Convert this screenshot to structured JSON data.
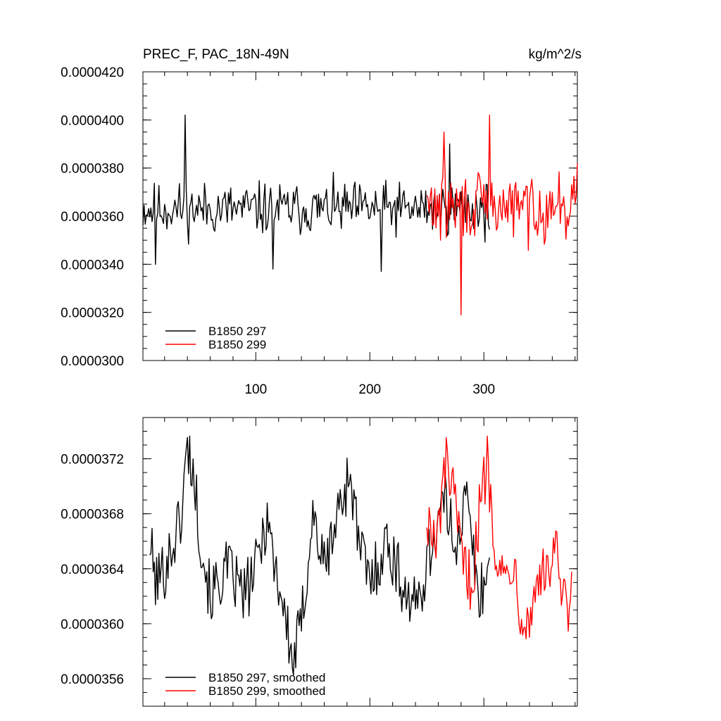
{
  "chart_data": [
    {
      "type": "line",
      "title_left": "PREC_F, PAC_18N-49N",
      "title_right": "kg/m^2/s",
      "xlim": [
        1,
        382
      ],
      "ylim": [
        3e-05,
        4.2e-05
      ],
      "x_ticks": [
        100,
        200,
        300
      ],
      "x_tick_labels": [
        "100",
        "200",
        "300"
      ],
      "y_ticks": [
        3e-05,
        3.2e-05,
        3.4e-05,
        3.6e-05,
        3.8e-05,
        4e-05,
        4.2e-05
      ],
      "y_tick_labels": [
        "0.0000300",
        "0.0000320",
        "0.0000340",
        "0.0000360",
        "0.0000380",
        "0.0000400",
        "0.0000420"
      ],
      "legend_position": "bottom-left",
      "series": [
        {
          "name": "B1850 297",
          "color": "#000000",
          "x_start": 1,
          "x_end": 305,
          "base": 3.63e-05,
          "amp": 1e-06,
          "seed": 11,
          "spikes": [
            [
              38,
              4.02e-05
            ],
            [
              12,
              3.4e-05
            ],
            [
              115,
              3.38e-05
            ],
            [
              210,
              3.37e-05
            ],
            [
              270,
              3.9e-05
            ]
          ]
        },
        {
          "name": "B1850 299",
          "color": "#ff0000",
          "x_start": 250,
          "x_end": 382,
          "base": 3.64e-05,
          "amp": 1.3e-06,
          "seed": 29,
          "spikes": [
            [
              280,
              3.19e-05
            ],
            [
              305,
              4.02e-05
            ],
            [
              265,
              3.95e-05
            ],
            [
              382,
              3.38e-05
            ],
            [
              382,
              3.82e-05
            ]
          ]
        }
      ]
    },
    {
      "type": "line",
      "xlim": [
        1,
        382
      ],
      "ylim": [
        3.54e-05,
        3.75e-05
      ],
      "y_ticks": [
        3.56e-05,
        3.6e-05,
        3.64e-05,
        3.68e-05,
        3.72e-05
      ],
      "y_tick_labels": [
        "0.0000356",
        "0.0000360",
        "0.0000364",
        "0.0000368",
        "0.0000372"
      ],
      "legend_position": "bottom-left",
      "series": [
        {
          "name": "B1850 297, smoothed",
          "color": "#000000",
          "x_start": 7,
          "x_end": 305,
          "anchors": [
            [
              7,
              3.66e-05
            ],
            [
              12,
              3.63e-05
            ],
            [
              20,
              3.64e-05
            ],
            [
              28,
              3.66e-05
            ],
            [
              35,
              3.68e-05
            ],
            [
              40,
              3.73e-05
            ],
            [
              45,
              3.71e-05
            ],
            [
              52,
              3.66e-05
            ],
            [
              60,
              3.62e-05
            ],
            [
              75,
              3.64e-05
            ],
            [
              90,
              3.62e-05
            ],
            [
              100,
              3.64e-05
            ],
            [
              110,
              3.68e-05
            ],
            [
              115,
              3.65e-05
            ],
            [
              125,
              3.61e-05
            ],
            [
              132,
              3.57e-05
            ],
            [
              140,
              3.6e-05
            ],
            [
              150,
              3.68e-05
            ],
            [
              160,
              3.64e-05
            ],
            [
              175,
              3.69e-05
            ],
            [
              183,
              3.71e-05
            ],
            [
              190,
              3.66e-05
            ],
            [
              200,
              3.63e-05
            ],
            [
              215,
              3.66e-05
            ],
            [
              228,
              3.63e-05
            ],
            [
              240,
              3.61e-05
            ],
            [
              252,
              3.65e-05
            ],
            [
              265,
              3.69e-05
            ],
            [
              275,
              3.66e-05
            ],
            [
              285,
              3.69e-05
            ],
            [
              295,
              3.62e-05
            ],
            [
              305,
              3.64e-05
            ]
          ]
        },
        {
          "name": "B1850 299, smoothed",
          "color": "#ff0000",
          "x_start": 250,
          "x_end": 377,
          "anchors": [
            [
              250,
              3.68e-05
            ],
            [
              258,
              3.65e-05
            ],
            [
              264,
              3.7e-05
            ],
            [
              268,
              3.72e-05
            ],
            [
              275,
              3.68e-05
            ],
            [
              282,
              3.64e-05
            ],
            [
              290,
              3.63e-05
            ],
            [
              296,
              3.68e-05
            ],
            [
              303,
              3.72e-05
            ],
            [
              310,
              3.66e-05
            ],
            [
              318,
              3.63e-05
            ],
            [
              325,
              3.65e-05
            ],
            [
              333,
              3.61e-05
            ],
            [
              340,
              3.6e-05
            ],
            [
              348,
              3.64e-05
            ],
            [
              355,
              3.63e-05
            ],
            [
              362,
              3.66e-05
            ],
            [
              368,
              3.62e-05
            ],
            [
              375,
              3.6e-05
            ],
            [
              377,
              3.64e-05
            ]
          ]
        }
      ]
    }
  ]
}
